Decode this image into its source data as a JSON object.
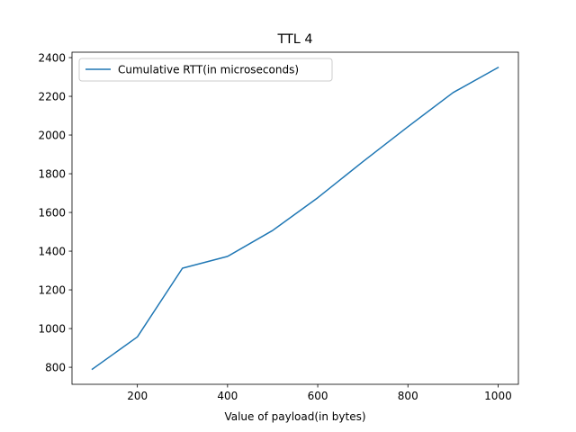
{
  "chart_data": {
    "type": "line",
    "title": "TTL 4",
    "xlabel": "Value of payload(in bytes)",
    "ylabel": "",
    "x": [
      100,
      200,
      300,
      400,
      500,
      600,
      700,
      800,
      900,
      1000
    ],
    "series": [
      {
        "name": "Cumulative RTT(in microseconds)",
        "color": "#1f77b4",
        "values": [
          790,
          957,
          1312,
          1373,
          1507,
          1676,
          1862,
          2043,
          2219,
          2349
        ]
      }
    ],
    "xlim": [
      55,
      1045
    ],
    "ylim": [
      712,
      2428
    ],
    "xticks": [
      200,
      400,
      600,
      800,
      1000
    ],
    "yticks": [
      800,
      1000,
      1200,
      1400,
      1600,
      1800,
      2000,
      2200,
      2400
    ],
    "grid": false,
    "legend_position": "upper-left"
  }
}
